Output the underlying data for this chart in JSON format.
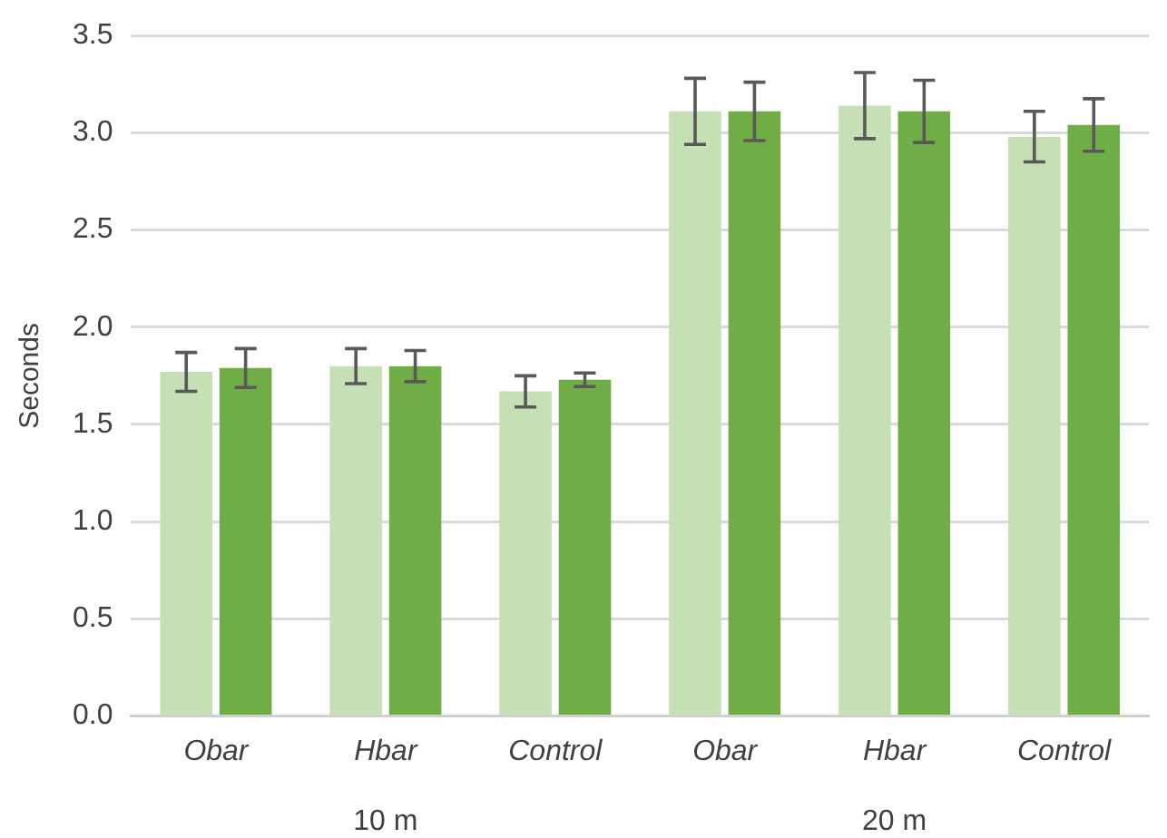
{
  "chart_data": {
    "type": "bar",
    "ylabel": "Seconds",
    "categories": [
      "Obar",
      "Hbar",
      "Control",
      "Obar",
      "Hbar",
      "Control"
    ],
    "series": [
      {
        "color": "#c5e0b4",
        "values": [
          1.77,
          1.8,
          1.67,
          3.11,
          3.14,
          2.98
        ],
        "errors": [
          0.1,
          0.09,
          0.08,
          0.17,
          0.17,
          0.13
        ]
      },
      {
        "color": "#70ad47",
        "values": [
          1.79,
          1.8,
          1.73,
          3.11,
          3.11,
          3.04
        ],
        "errors": [
          0.1,
          0.08,
          0.035,
          0.15,
          0.16,
          0.135
        ]
      }
    ],
    "annotations": [
      "10 m",
      "20 m"
    ],
    "ylim": [
      0,
      3.5
    ],
    "yticks": [
      {
        "value": 0,
        "label": "0.0"
      },
      {
        "value": 0.5,
        "label": "0.5"
      },
      {
        "value": 1,
        "label": "1.0"
      },
      {
        "value": 1.5,
        "label": "1.5"
      },
      {
        "value": 2,
        "label": "2.0"
      },
      {
        "value": 2.5,
        "label": "2.5"
      },
      {
        "value": 3,
        "label": "3.0"
      },
      {
        "value": 3.5,
        "label": "3.5"
      }
    ],
    "grid": "y",
    "legend": false
  }
}
